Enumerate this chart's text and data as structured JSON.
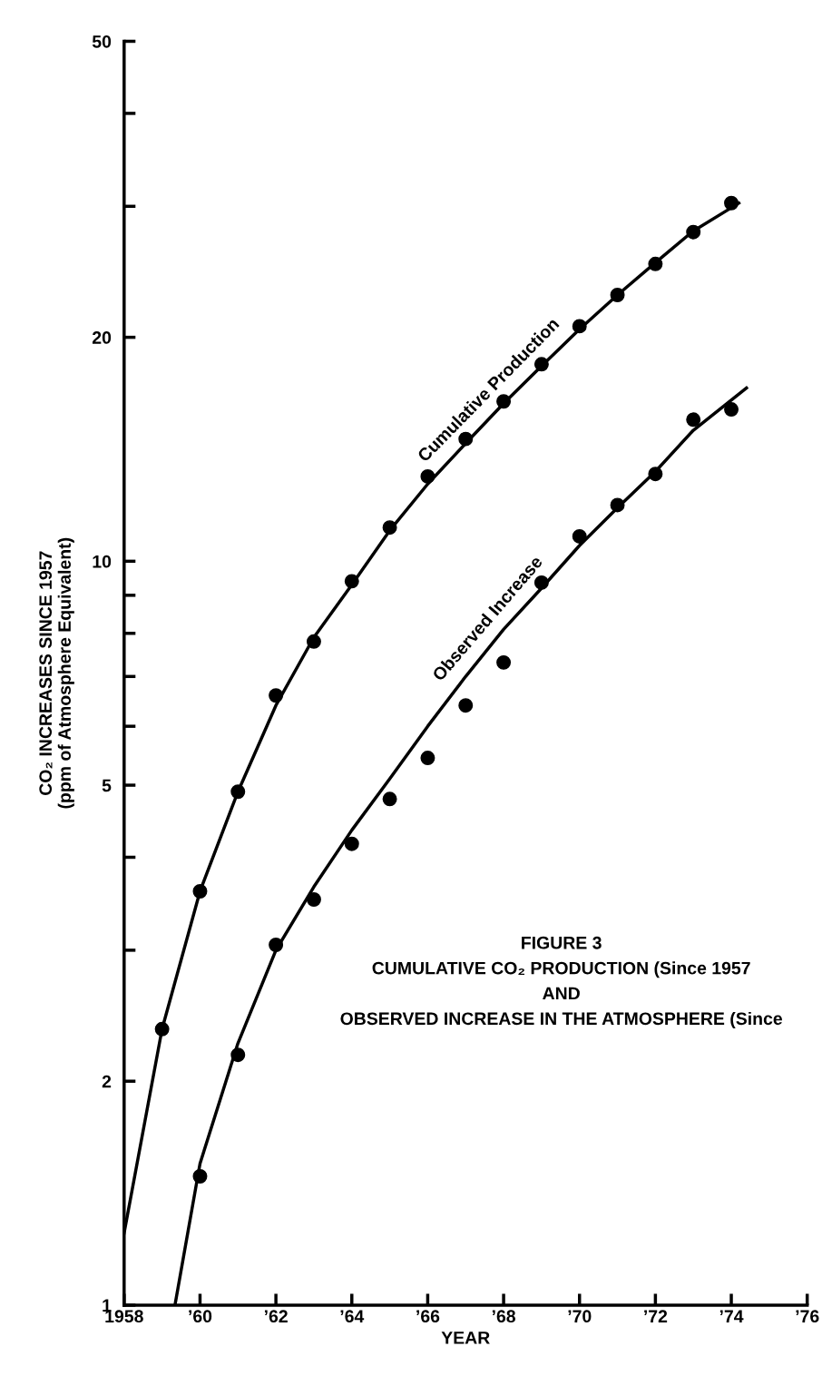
{
  "chart_data": {
    "type": "scatter",
    "xlabel": "YEAR",
    "ylabel": "CO₂ INCREASES SINCE 1957\n(ppm of Atmosphere Equivalent)",
    "annotations": [
      "FIGURE 3",
      "CUMULATIVE CO₂ PRODUCTION (Since 1957",
      "AND",
      "OBSERVED INCREASE IN THE ATMOSPHERE (Since"
    ],
    "log": "y",
    "grid": false,
    "legend": false,
    "xlim": [
      1958,
      1976
    ],
    "xticks": [
      1958,
      {
        "value": 1960,
        "label": "’60"
      },
      {
        "value": 1962,
        "label": "’62"
      },
      {
        "value": 1964,
        "label": "’64"
      },
      {
        "value": 1966,
        "label": "’66"
      },
      {
        "value": 1968,
        "label": "’68"
      },
      {
        "value": 1970,
        "label": "’70"
      },
      {
        "value": 1972,
        "label": "’72"
      },
      {
        "value": 1974,
        "label": "’74"
      },
      {
        "value": 1976,
        "label": "’76"
      }
    ],
    "ylim": [
      1,
      50
    ],
    "yticks": [
      1,
      2,
      {
        "value": 3,
        "label": null
      },
      {
        "value": 4,
        "label": null
      },
      5,
      {
        "value": 6,
        "label": null
      },
      {
        "value": 7,
        "label": null
      },
      {
        "value": 8,
        "label": null
      },
      {
        "value": 9,
        "label": null
      },
      10,
      20,
      {
        "value": 30,
        "label": null
      },
      {
        "value": 40,
        "label": null
      },
      50
    ],
    "series": [
      {
        "marker": "circle",
        "color": "#000000",
        "x": [
          1959,
          1960,
          1961,
          1962,
          1963,
          1964,
          1965,
          1966,
          1967,
          1968,
          1969,
          1970,
          1971,
          1972,
          1973,
          1974
        ],
        "values": [
          2.35,
          3.6,
          4.9,
          6.6,
          7.8,
          9.4,
          11.1,
          13.0,
          14.6,
          16.4,
          18.4,
          20.7,
          22.8,
          25.1,
          27.7,
          30.3
        ]
      },
      {
        "marker": "circle",
        "color": "#000000",
        "x": [
          1960,
          1961,
          1962,
          1963,
          1964,
          1965,
          1966,
          1967,
          1968,
          1969,
          1970,
          1971,
          1972,
          1973,
          1974
        ],
        "values": [
          1.49,
          2.17,
          3.05,
          3.51,
          4.17,
          4.79,
          5.44,
          6.4,
          7.31,
          9.36,
          10.8,
          11.9,
          13.1,
          15.5,
          16.0
        ]
      },
      {
        "type": "line",
        "name": "Cumulative Production",
        "color": "#000000",
        "line_style": "solid",
        "marker": "none",
        "x": [
          1958,
          1959,
          1960,
          1961,
          1962,
          1963,
          1964,
          1965,
          1966,
          1967,
          1968,
          1969,
          1970,
          1971,
          1972,
          1973,
          1974.2
        ],
        "values": [
          1.25,
          2.35,
          3.6,
          4.9,
          6.4,
          7.9,
          9.3,
          11.0,
          12.7,
          14.4,
          16.3,
          18.3,
          20.5,
          22.8,
          25.2,
          27.8,
          30.3
        ]
      },
      {
        "type": "line",
        "name": "Observed Increase",
        "color": "#000000",
        "line_style": "solid",
        "marker": "none",
        "x": [
          1959.34,
          1960,
          1961,
          1962,
          1963,
          1964,
          1965,
          1966,
          1967,
          1968,
          1969,
          1970,
          1971,
          1972,
          1973,
          1974.4
        ],
        "values": [
          1.0,
          1.55,
          2.25,
          3.0,
          3.65,
          4.35,
          5.1,
          6.0,
          7.0,
          8.1,
          9.2,
          10.5,
          11.8,
          13.2,
          15.0,
          17.1
        ]
      }
    ]
  }
}
